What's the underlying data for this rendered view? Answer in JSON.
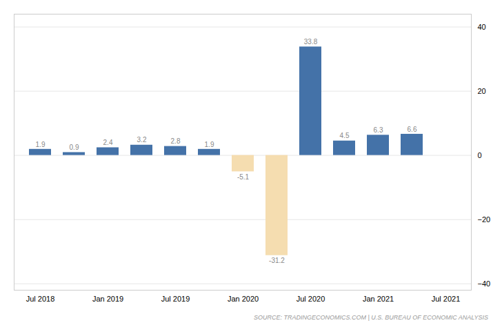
{
  "chart_data": {
    "type": "bar",
    "categories": [
      "Jul 2018",
      null,
      "Jan 2019",
      null,
      "Jul 2019",
      null,
      "Jan 2020",
      null,
      "Jul 2020",
      null,
      "Jan 2021",
      null,
      "Jul 2021"
    ],
    "values": [
      1.9,
      0.9,
      2.4,
      3.2,
      2.8,
      1.9,
      -5.1,
      -31.2,
      33.8,
      4.5,
      6.3,
      6.6,
      null
    ],
    "colors": [
      "#4472a8",
      "#4472a8",
      "#4472a8",
      "#4472a8",
      "#4472a8",
      "#4472a8",
      "#f5ddb0",
      "#f5ddb0",
      "#4472a8",
      "#4472a8",
      "#4472a8",
      "#4472a8",
      null
    ],
    "ylim": [
      -42,
      44
    ],
    "yticks": [
      -40,
      -20,
      0,
      20,
      40
    ],
    "grid": true,
    "data_labels": true,
    "caption": "SOURCE: TRADINGECONOMICS.COM | U.S. BUREAU OF ECONOMIC ANALYSIS"
  }
}
